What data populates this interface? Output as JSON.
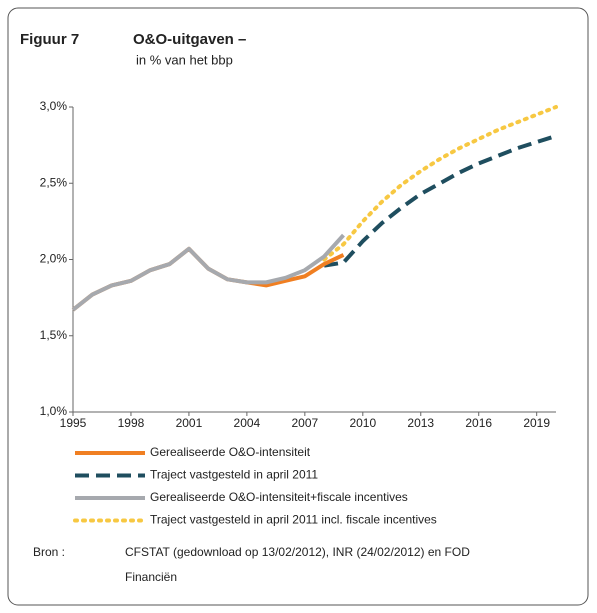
{
  "chart_data": {
    "type": "line",
    "title": "Figuur 7",
    "title2": "O&O-uitgaven –",
    "subtitle": "in % van het bbp",
    "x": [
      1995,
      1996,
      1997,
      1998,
      1999,
      2000,
      2001,
      2002,
      2003,
      2004,
      2005,
      2006,
      2007,
      2008,
      2009,
      2010,
      2011,
      2012,
      2013,
      2014,
      2015,
      2016,
      2017,
      2018,
      2019,
      2020
    ],
    "series": [
      {
        "name": "Gerealiseerde O&O-intensiteit",
        "color": "#f07f22",
        "dash": "solid",
        "values": [
          1.67,
          1.77,
          1.83,
          1.86,
          1.93,
          1.97,
          2.07,
          1.94,
          1.87,
          1.85,
          1.83,
          1.86,
          1.89,
          1.97,
          2.03,
          null,
          null,
          null,
          null,
          null,
          null,
          null,
          null,
          null,
          null,
          null
        ]
      },
      {
        "name": "Traject vastgesteld in april 2011",
        "color": "#1f4e5f",
        "dash": "dashed",
        "values": [
          null,
          null,
          null,
          null,
          null,
          null,
          null,
          null,
          null,
          null,
          null,
          null,
          null,
          1.96,
          1.98,
          2.12,
          2.24,
          2.34,
          2.43,
          2.5,
          2.57,
          2.63,
          2.68,
          2.73,
          2.77,
          2.81
        ]
      },
      {
        "name": "Gerealiseerde O&O-intensiteit+fiscale incentives",
        "color": "#a6a9ae",
        "dash": "solid",
        "values": [
          1.67,
          1.77,
          1.83,
          1.86,
          1.93,
          1.97,
          2.07,
          1.94,
          1.87,
          1.85,
          1.85,
          1.88,
          1.93,
          2.02,
          2.16,
          null,
          null,
          null,
          null,
          null,
          null,
          null,
          null,
          null,
          null,
          null
        ]
      },
      {
        "name": "Traject vastgesteld in april 2011 incl. fiscale incentives",
        "color": "#f7c842",
        "dash": "dotted",
        "values": [
          null,
          null,
          null,
          null,
          null,
          null,
          null,
          null,
          null,
          null,
          null,
          null,
          null,
          2.0,
          2.1,
          2.25,
          2.38,
          2.49,
          2.58,
          2.66,
          2.73,
          2.79,
          2.85,
          2.9,
          2.95,
          3.0
        ]
      }
    ],
    "xlim": [
      1995,
      2020
    ],
    "xticks": [
      1995,
      1998,
      2001,
      2004,
      2007,
      2010,
      2013,
      2016,
      2019
    ],
    "ylim": [
      1,
      3
    ],
    "yticks": [
      {
        "value": 1,
        "label": "1,0%"
      },
      {
        "value": 1.5,
        "label": "1,5%"
      },
      {
        "value": 2,
        "label": "2,0%"
      },
      {
        "value": 2.5,
        "label": "2,5%"
      },
      {
        "value": 3,
        "label": "3,0%"
      }
    ],
    "source_label": "Bron :",
    "source_lines": [
      "CFSTAT (gedownload op 13/02/2012), INR (24/02/2012) en FOD",
      "Financiën"
    ]
  }
}
